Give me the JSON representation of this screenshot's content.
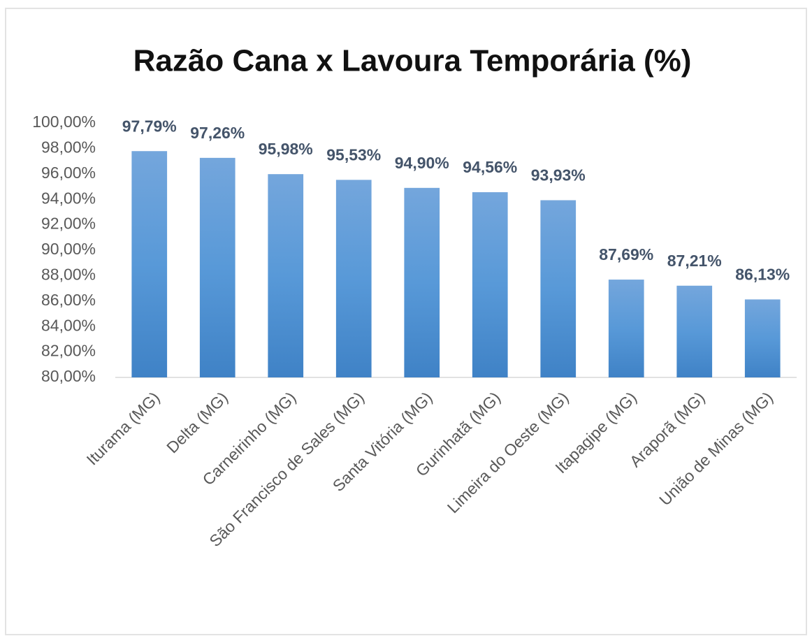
{
  "chart_data": {
    "type": "bar",
    "title": "Razão Cana x Lavoura Temporária (%)",
    "categories": [
      "Iturama (MG)",
      "Delta (MG)",
      "Carneirinho (MG)",
      "São Francisco de Sales (MG)",
      "Santa Vitória (MG)",
      "Gurinhatã (MG)",
      "Limeira do Oeste (MG)",
      "Itapagipe (MG)",
      "Araporã (MG)",
      "União de Minas (MG)"
    ],
    "values": [
      97.79,
      97.26,
      95.98,
      95.53,
      94.9,
      94.56,
      93.93,
      87.69,
      87.21,
      86.13
    ],
    "value_labels": [
      "97,79%",
      "97,26%",
      "95,98%",
      "95,53%",
      "94,90%",
      "94,56%",
      "93,93%",
      "87,69%",
      "87,21%",
      "86,13%"
    ],
    "color": "#5b9bd5",
    "ylim": [
      80,
      100
    ],
    "yticks": [
      {
        "value": 80,
        "label": "80,00%"
      },
      {
        "value": 82,
        "label": "82,00%"
      },
      {
        "value": 84,
        "label": "84,00%"
      },
      {
        "value": 86,
        "label": "86,00%"
      },
      {
        "value": 88,
        "label": "88,00%"
      },
      {
        "value": 90,
        "label": "90,00%"
      },
      {
        "value": 92,
        "label": "92,00%"
      },
      {
        "value": 94,
        "label": "94,00%"
      },
      {
        "value": 96,
        "label": "96,00%"
      },
      {
        "value": 98,
        "label": "98,00%"
      },
      {
        "value": 100,
        "label": "100,00%"
      }
    ],
    "grid": false
  }
}
